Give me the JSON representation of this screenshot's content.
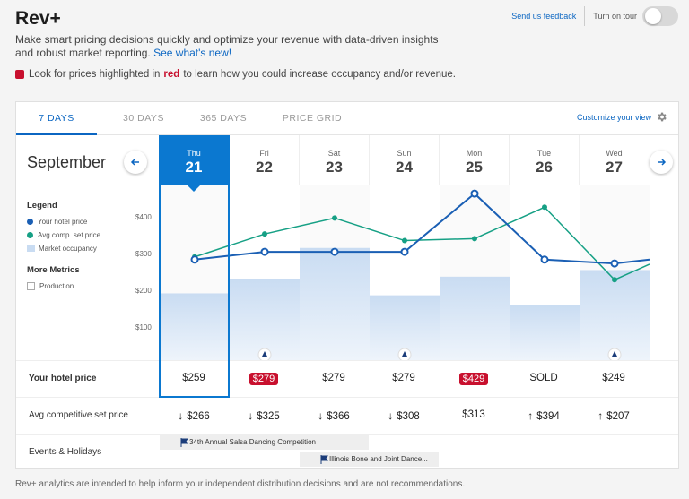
{
  "app": {
    "title": "Rev+",
    "intro_text": "Make smart pricing decisions quickly and optimize your revenue with data-driven insights and robust market reporting.",
    "whats_new_link": "See what's new!",
    "notice_before": "Look for prices highlighted in",
    "notice_red_word": "red",
    "notice_after": "to learn how you could increase occupancy and/or revenue.",
    "send_feedback": "Send us feedback",
    "tour_label": "Turn on tour",
    "tour_on": false,
    "footer": "Rev+ analytics are intended to help inform your independent distribution decisions and are not recommendations."
  },
  "tabs": [
    {
      "label": "7 DAYS",
      "active": true
    },
    {
      "label": "30 DAYS",
      "active": false
    },
    {
      "label": "365 DAYS",
      "active": false
    },
    {
      "label": "PRICE GRID",
      "active": false
    }
  ],
  "customize_label": "Customize your view",
  "month": "September",
  "days": [
    {
      "dow": "Thu",
      "num": "21",
      "selected": true
    },
    {
      "dow": "Fri",
      "num": "22",
      "selected": false
    },
    {
      "dow": "Sat",
      "num": "23",
      "selected": false
    },
    {
      "dow": "Sun",
      "num": "24",
      "selected": false
    },
    {
      "dow": "Mon",
      "num": "25",
      "selected": false
    },
    {
      "dow": "Tue",
      "num": "26",
      "selected": false
    },
    {
      "dow": "Wed",
      "num": "27",
      "selected": false
    }
  ],
  "legend": {
    "title": "Legend",
    "items": [
      {
        "label": "Your hotel price",
        "color": "#1a5fb4"
      },
      {
        "label": "Avg comp. set price",
        "color": "#16a085"
      },
      {
        "label": "Market occupancy",
        "color": "#c9dcf2"
      }
    ],
    "more_metrics_title": "More Metrics",
    "production_label": "Production"
  },
  "chart_data": {
    "type": "line",
    "categories": [
      "Thu 21",
      "Fri 22",
      "Sat 23",
      "Sun 24",
      "Mon 25",
      "Tue 26",
      "Wed 27"
    ],
    "y_ticks": [
      "$400",
      "$300",
      "$200",
      "$100"
    ],
    "ylim": [
      0,
      450
    ],
    "series": [
      {
        "name": "Your hotel price",
        "values": [
          259,
          279,
          279,
          279,
          429,
          259,
          249
        ]
      },
      {
        "name": "Avg comp. set price",
        "values": [
          266,
          325,
          366,
          308,
          313,
          394,
          207
        ]
      },
      {
        "name": "Market occupancy",
        "values": [
          172,
          210,
          289,
          167,
          215,
          143,
          232
        ]
      }
    ]
  },
  "rows": {
    "hotel_price_label": "Your hotel price",
    "comp_price_label": "Avg competitive set price",
    "events_label": "Events & Holidays",
    "hotel_prices": [
      {
        "text": "$259",
        "red": false
      },
      {
        "text": "$279",
        "red": true
      },
      {
        "text": "$279",
        "red": false
      },
      {
        "text": "$279",
        "red": false
      },
      {
        "text": "$429",
        "red": true
      },
      {
        "text": "SOLD",
        "red": false
      },
      {
        "text": "$249",
        "red": false
      }
    ],
    "comp_prices": [
      {
        "text": "$266",
        "arrow": "down"
      },
      {
        "text": "$325",
        "arrow": "down"
      },
      {
        "text": "$366",
        "arrow": "down"
      },
      {
        "text": "$308",
        "arrow": "down"
      },
      {
        "text": "$313",
        "arrow": ""
      },
      {
        "text": "$394",
        "arrow": "up"
      },
      {
        "text": "$207",
        "arrow": "up"
      }
    ],
    "events": [
      {
        "text": "34th Annual Salsa Dancing Competition"
      },
      {
        "text": "Illinois Bone and Joint Dance..."
      }
    ]
  }
}
